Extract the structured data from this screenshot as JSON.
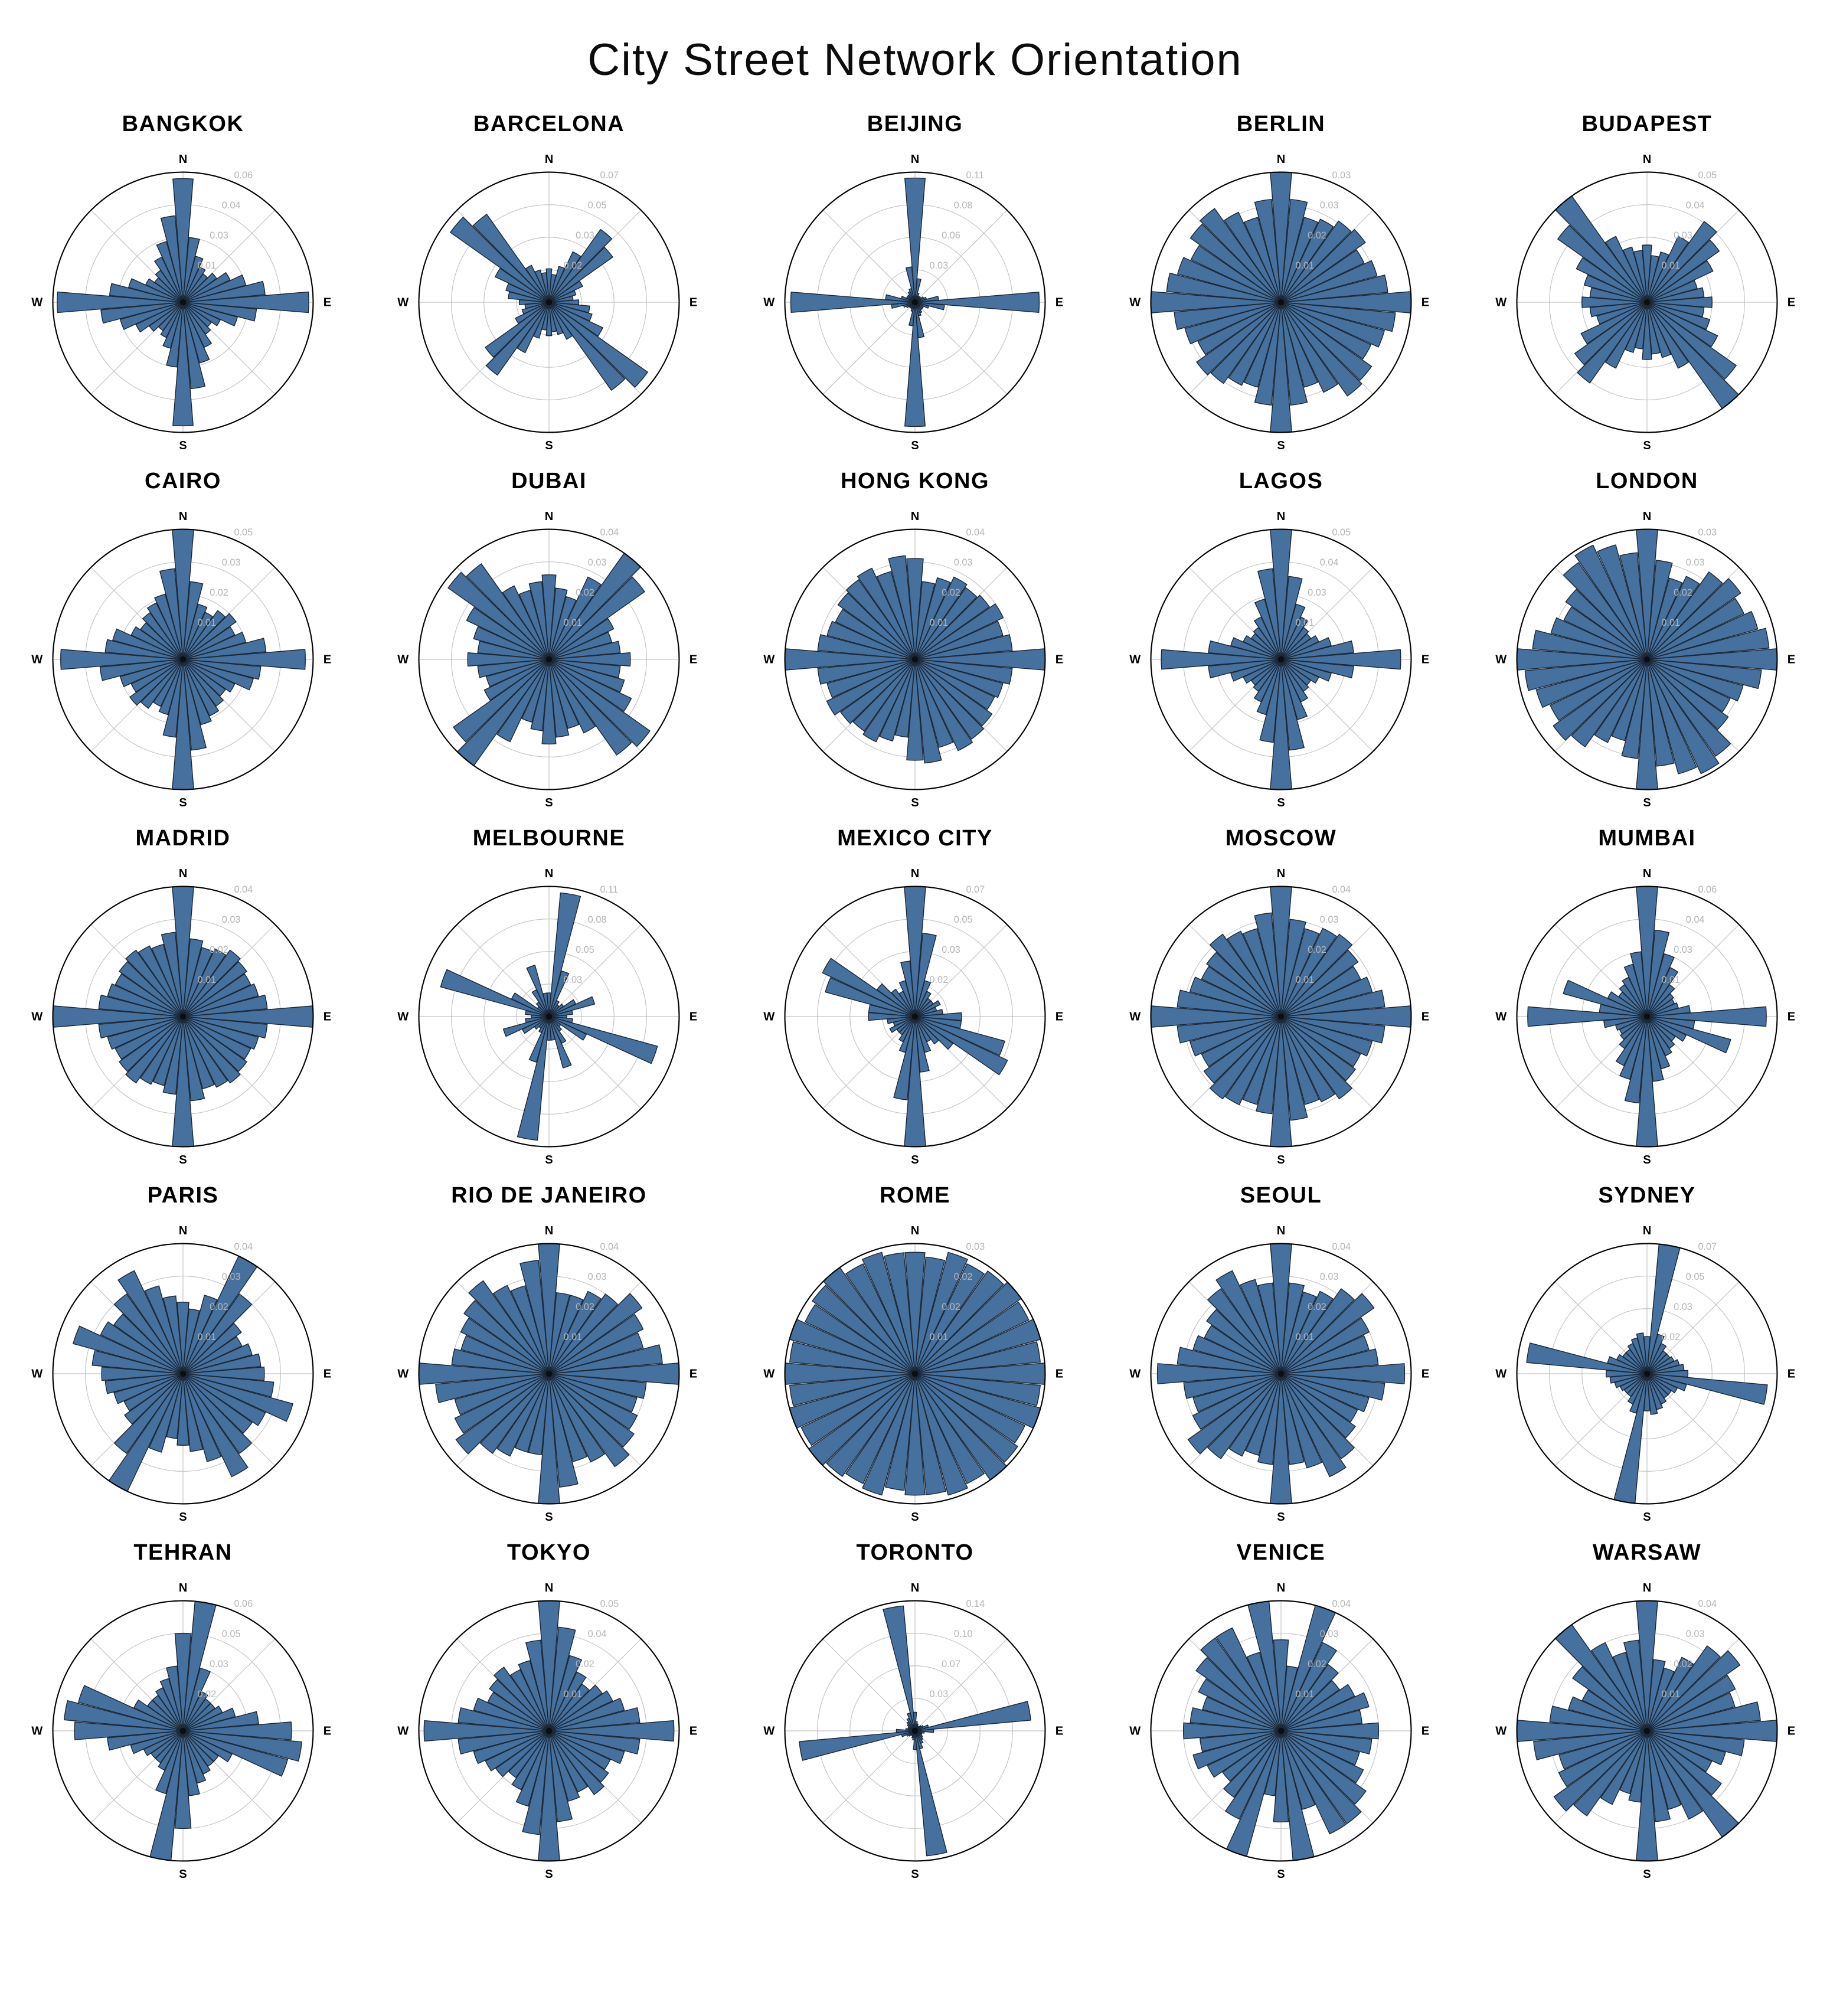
{
  "title": "City Street Network Orientation",
  "compass": {
    "north": "N",
    "east": "E",
    "south": "S",
    "west": "W"
  },
  "style": {
    "bar_fill": "#46719e",
    "bar_edge": "#1b2838",
    "grid_color": "#c3c3c3",
    "outer_ring_color": "#000000",
    "tick_label_color": "#b5b5b5",
    "background": "#ffffff"
  },
  "chart_data": [
    {
      "type": "polar-histogram",
      "city": "BANGKOK",
      "rmax": 0.06,
      "bin_width_deg": 10,
      "symmetry": "point",
      "tick_labels": [
        "0.01",
        "0.03",
        "0.04",
        "0.06"
      ],
      "values_half": [
        0.057,
        0.03,
        0.022,
        0.018,
        0.016,
        0.019,
        0.024,
        0.03,
        0.038,
        0.058,
        0.034,
        0.026,
        0.019,
        0.016,
        0.018,
        0.023,
        0.029,
        0.04
      ]
    },
    {
      "type": "polar-histogram",
      "city": "BARCELONA",
      "rmax": 0.07,
      "bin_width_deg": 10,
      "symmetry": "point",
      "tick_labels": [
        "0.02",
        "0.03",
        "0.05",
        "0.07"
      ],
      "values_half": [
        0.018,
        0.015,
        0.02,
        0.03,
        0.048,
        0.042,
        0.02,
        0.015,
        0.013,
        0.016,
        0.022,
        0.024,
        0.032,
        0.065,
        0.058,
        0.022,
        0.018,
        0.016
      ]
    },
    {
      "type": "polar-histogram",
      "city": "BEIJING",
      "rmax": 0.11,
      "bin_width_deg": 10,
      "symmetry": "point",
      "tick_labels": [
        "0.03",
        "0.06",
        "0.08",
        "0.11"
      ],
      "values_half": [
        0.105,
        0.02,
        0.008,
        0.006,
        0.006,
        0.006,
        0.008,
        0.01,
        0.02,
        0.105,
        0.025,
        0.012,
        0.008,
        0.008,
        0.008,
        0.01,
        0.012,
        0.03
      ]
    },
    {
      "type": "polar-histogram",
      "city": "BERLIN",
      "rmax": 0.034,
      "bin_width_deg": 10,
      "symmetry": "point",
      "tick_labels": [
        "0.01",
        "0.02",
        "0.03",
        "0.03"
      ],
      "values_half": [
        0.034,
        0.027,
        0.023,
        0.024,
        0.026,
        0.027,
        0.024,
        0.026,
        0.028,
        0.034,
        0.03,
        0.028,
        0.026,
        0.029,
        0.03,
        0.026,
        0.023,
        0.027
      ]
    },
    {
      "type": "polar-histogram",
      "city": "BUDAPEST",
      "rmax": 0.05,
      "bin_width_deg": 10,
      "symmetry": "point",
      "tick_labels": [
        "0.01",
        "0.03",
        "0.04",
        "0.05"
      ],
      "values_half": [
        0.022,
        0.018,
        0.02,
        0.028,
        0.038,
        0.034,
        0.028,
        0.02,
        0.022,
        0.025,
        0.022,
        0.025,
        0.03,
        0.042,
        0.05,
        0.028,
        0.022,
        0.02
      ]
    },
    {
      "type": "polar-histogram",
      "city": "CAIRO",
      "rmax": 0.05,
      "bin_width_deg": 10,
      "symmetry": "point",
      "tick_labels": [
        "0.01",
        "0.02",
        "0.03",
        "0.05"
      ],
      "values_half": [
        0.05,
        0.03,
        0.022,
        0.02,
        0.023,
        0.025,
        0.022,
        0.025,
        0.032,
        0.047,
        0.03,
        0.028,
        0.022,
        0.02,
        0.022,
        0.024,
        0.026,
        0.035
      ]
    },
    {
      "type": "polar-histogram",
      "city": "DUBAI",
      "rmax": 0.04,
      "bin_width_deg": 10,
      "symmetry": "point",
      "tick_labels": [
        "0.01",
        "0.02",
        "0.03",
        "0.04"
      ],
      "values_half": [
        0.026,
        0.022,
        0.02,
        0.028,
        0.04,
        0.036,
        0.022,
        0.02,
        0.022,
        0.025,
        0.022,
        0.024,
        0.028,
        0.038,
        0.036,
        0.025,
        0.022,
        0.024
      ]
    },
    {
      "type": "polar-histogram",
      "city": "HONG KONG",
      "rmax": 0.04,
      "bin_width_deg": 10,
      "symmetry": "point",
      "tick_labels": [
        "0.01",
        "0.02",
        "0.03",
        "0.04"
      ],
      "values_half": [
        0.031,
        0.024,
        0.026,
        0.028,
        0.027,
        0.028,
        0.03,
        0.028,
        0.03,
        0.04,
        0.03,
        0.028,
        0.027,
        0.029,
        0.03,
        0.031,
        0.028,
        0.032
      ]
    },
    {
      "type": "polar-histogram",
      "city": "LAGOS",
      "rmax": 0.05,
      "bin_width_deg": 10,
      "symmetry": "point",
      "tick_labels": [
        "0.01",
        "0.03",
        "0.04",
        "0.05"
      ],
      "values_half": [
        0.05,
        0.032,
        0.022,
        0.018,
        0.015,
        0.014,
        0.016,
        0.02,
        0.028,
        0.046,
        0.028,
        0.02,
        0.016,
        0.014,
        0.015,
        0.018,
        0.024,
        0.035
      ]
    },
    {
      "type": "polar-histogram",
      "city": "LONDON",
      "rmax": 0.034,
      "bin_width_deg": 10,
      "symmetry": "point",
      "tick_labels": [
        "0.01",
        "0.02",
        "0.03",
        "0.03"
      ],
      "values_half": [
        0.034,
        0.026,
        0.022,
        0.024,
        0.028,
        0.03,
        0.028,
        0.03,
        0.032,
        0.034,
        0.03,
        0.026,
        0.024,
        0.026,
        0.031,
        0.033,
        0.031,
        0.028
      ]
    },
    {
      "type": "polar-histogram",
      "city": "MADRID",
      "rmax": 0.04,
      "bin_width_deg": 10,
      "symmetry": "point",
      "tick_labels": [
        "0.01",
        "0.02",
        "0.03",
        "0.04"
      ],
      "values_half": [
        0.04,
        0.024,
        0.022,
        0.023,
        0.025,
        0.024,
        0.023,
        0.024,
        0.026,
        0.04,
        0.026,
        0.024,
        0.023,
        0.024,
        0.025,
        0.024,
        0.023,
        0.026
      ]
    },
    {
      "type": "polar-histogram",
      "city": "MELBOURNE",
      "rmax": 0.11,
      "bin_width_deg": 10,
      "symmetry": "point",
      "tick_labels": [
        "0.03",
        "0.05",
        "0.08",
        "0.11"
      ],
      "values_half": [
        0.02,
        0.105,
        0.04,
        0.015,
        0.012,
        0.015,
        0.025,
        0.04,
        0.02,
        0.015,
        0.02,
        0.095,
        0.035,
        0.012,
        0.015,
        0.025,
        0.045,
        0.02
      ]
    },
    {
      "type": "polar-histogram",
      "city": "MEXICO CITY",
      "rmax": 0.07,
      "bin_width_deg": 10,
      "symmetry": "point",
      "tick_labels": [
        "0.02",
        "0.03",
        "0.05",
        "0.07"
      ],
      "values_half": [
        0.07,
        0.045,
        0.02,
        0.015,
        0.012,
        0.012,
        0.015,
        0.012,
        0.015,
        0.025,
        0.025,
        0.05,
        0.055,
        0.025,
        0.018,
        0.015,
        0.02,
        0.03
      ]
    },
    {
      "type": "polar-histogram",
      "city": "MOSCOW",
      "rmax": 0.04,
      "bin_width_deg": 10,
      "symmetry": "point",
      "tick_labels": [
        "0.01",
        "0.02",
        "0.03",
        "0.04"
      ],
      "values_half": [
        0.04,
        0.03,
        0.028,
        0.03,
        0.031,
        0.029,
        0.027,
        0.029,
        0.032,
        0.04,
        0.032,
        0.029,
        0.027,
        0.028,
        0.031,
        0.029,
        0.028,
        0.032
      ]
    },
    {
      "type": "polar-histogram",
      "city": "MUMBAI",
      "rmax": 0.06,
      "bin_width_deg": 10,
      "symmetry": "point",
      "tick_labels": [
        "0.01",
        "0.03",
        "0.04",
        "0.06"
      ],
      "values_half": [
        0.06,
        0.04,
        0.03,
        0.025,
        0.018,
        0.015,
        0.014,
        0.015,
        0.02,
        0.055,
        0.022,
        0.04,
        0.02,
        0.016,
        0.018,
        0.02,
        0.025,
        0.03
      ]
    },
    {
      "type": "polar-histogram",
      "city": "PARIS",
      "rmax": 0.04,
      "bin_width_deg": 10,
      "symmetry": "point",
      "tick_labels": [
        "0.01",
        "0.02",
        "0.03",
        "0.04"
      ],
      "values_half": [
        0.022,
        0.02,
        0.025,
        0.04,
        0.03,
        0.022,
        0.02,
        0.022,
        0.024,
        0.025,
        0.028,
        0.035,
        0.028,
        0.026,
        0.03,
        0.035,
        0.028,
        0.024
      ]
    },
    {
      "type": "polar-histogram",
      "city": "RIO DE JANEIRO",
      "rmax": 0.04,
      "bin_width_deg": 10,
      "symmetry": "point",
      "tick_labels": [
        "0.01",
        "0.02",
        "0.03",
        "0.04"
      ],
      "values_half": [
        0.04,
        0.025,
        0.025,
        0.028,
        0.03,
        0.035,
        0.032,
        0.03,
        0.035,
        0.04,
        0.03,
        0.028,
        0.03,
        0.032,
        0.035,
        0.03,
        0.028,
        0.035
      ]
    },
    {
      "type": "polar-histogram",
      "city": "ROME",
      "rmax": 0.03,
      "bin_width_deg": 10,
      "symmetry": "point",
      "tick_labels": [
        "0.01",
        "0.02",
        "0.02",
        "0.03"
      ],
      "values_half": [
        0.028,
        0.027,
        0.029,
        0.028,
        0.029,
        0.03,
        0.029,
        0.03,
        0.029,
        0.03,
        0.029,
        0.03,
        0.028,
        0.029,
        0.03,
        0.028,
        0.029,
        0.028
      ]
    },
    {
      "type": "polar-histogram",
      "city": "SEOUL",
      "rmax": 0.04,
      "bin_width_deg": 10,
      "symmetry": "point",
      "tick_labels": [
        "0.01",
        "0.02",
        "0.03",
        "0.04"
      ],
      "values_half": [
        0.04,
        0.028,
        0.026,
        0.028,
        0.032,
        0.035,
        0.03,
        0.028,
        0.03,
        0.038,
        0.032,
        0.028,
        0.026,
        0.028,
        0.032,
        0.035,
        0.03,
        0.028
      ]
    },
    {
      "type": "polar-histogram",
      "city": "SYDNEY",
      "rmax": 0.07,
      "bin_width_deg": 10,
      "symmetry": "point",
      "tick_labels": [
        "0.02",
        "0.03",
        "0.05",
        "0.07"
      ],
      "values_half": [
        0.02,
        0.07,
        0.022,
        0.018,
        0.015,
        0.015,
        0.016,
        0.018,
        0.02,
        0.022,
        0.065,
        0.022,
        0.018,
        0.016,
        0.016,
        0.018,
        0.02,
        0.022
      ]
    },
    {
      "type": "polar-histogram",
      "city": "TEHRAN",
      "rmax": 0.06,
      "bin_width_deg": 10,
      "symmetry": "point",
      "tick_labels": [
        "0.02",
        "0.03",
        "0.05",
        "0.06"
      ],
      "values_half": [
        0.045,
        0.06,
        0.03,
        0.02,
        0.018,
        0.018,
        0.02,
        0.025,
        0.035,
        0.05,
        0.055,
        0.05,
        0.025,
        0.02,
        0.02,
        0.022,
        0.025,
        0.03
      ]
    },
    {
      "type": "polar-histogram",
      "city": "TOKYO",
      "rmax": 0.05,
      "bin_width_deg": 10,
      "symmetry": "point",
      "tick_labels": [
        "0.01",
        "0.02",
        "0.04",
        "0.05"
      ],
      "values_half": [
        0.05,
        0.04,
        0.03,
        0.025,
        0.022,
        0.025,
        0.027,
        0.03,
        0.035,
        0.048,
        0.035,
        0.03,
        0.026,
        0.028,
        0.03,
        0.026,
        0.028,
        0.035
      ]
    },
    {
      "type": "polar-histogram",
      "city": "TORONTO",
      "rmax": 0.14,
      "bin_width_deg": 10,
      "symmetry": "point",
      "tick_labels": [
        "0.03",
        "0.07",
        "0.10",
        "0.14"
      ],
      "values_half": [
        0.02,
        0.01,
        0.008,
        0.006,
        0.006,
        0.008,
        0.01,
        0.015,
        0.125,
        0.02,
        0.01,
        0.008,
        0.008,
        0.01,
        0.012,
        0.015,
        0.02,
        0.135
      ]
    },
    {
      "type": "polar-histogram",
      "city": "VENICE",
      "rmax": 0.04,
      "bin_width_deg": 10,
      "symmetry": "point",
      "tick_labels": [
        "0.01",
        "0.02",
        "0.03",
        "0.04"
      ],
      "values_half": [
        0.028,
        0.02,
        0.04,
        0.03,
        0.025,
        0.022,
        0.025,
        0.028,
        0.025,
        0.03,
        0.028,
        0.025,
        0.028,
        0.032,
        0.035,
        0.035,
        0.025,
        0.04
      ]
    },
    {
      "type": "polar-histogram",
      "city": "WARSAW",
      "rmax": 0.04,
      "bin_width_deg": 10,
      "symmetry": "point",
      "tick_labels": [
        "0.01",
        "0.02",
        "0.03",
        "0.04"
      ],
      "values_half": [
        0.04,
        0.022,
        0.02,
        0.025,
        0.032,
        0.035,
        0.03,
        0.028,
        0.035,
        0.04,
        0.03,
        0.025,
        0.022,
        0.028,
        0.04,
        0.03,
        0.025,
        0.028
      ]
    }
  ]
}
